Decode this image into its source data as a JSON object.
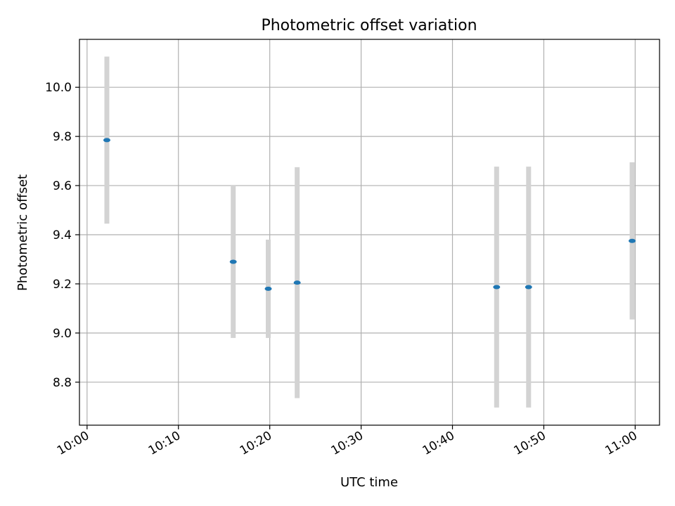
{
  "chart_data": {
    "type": "scatter",
    "title": "Photometric offset variation",
    "xlabel": "UTC time",
    "ylabel": "Photometric offset",
    "xlim": [
      "09:59:10",
      "11:02:40"
    ],
    "ylim": [
      8.625,
      10.195
    ],
    "x_ticks": [
      "10:00",
      "10:10",
      "10:20",
      "10:30",
      "10:40",
      "10:50",
      "11:00"
    ],
    "y_ticks": [
      "8.8",
      "9.0",
      "9.2",
      "9.4",
      "9.6",
      "9.8",
      "10.0"
    ],
    "grid": true,
    "colors": {
      "marker": "#1f77b4",
      "errorbar": "#d3d3d3",
      "grid": "#b0b0b0"
    },
    "points": [
      {
        "x": "10:02:10",
        "y": 9.785,
        "err": 0.34
      },
      {
        "x": "10:16:00",
        "y": 9.29,
        "err": 0.31
      },
      {
        "x": "10:19:50",
        "y": 9.18,
        "err": 0.2
      },
      {
        "x": "10:23:00",
        "y": 9.205,
        "err": 0.47
      },
      {
        "x": "10:44:50",
        "y": 9.187,
        "err": 0.49
      },
      {
        "x": "10:48:20",
        "y": 9.187,
        "err": 0.49
      },
      {
        "x": "10:59:40",
        "y": 9.375,
        "err": 0.32
      }
    ]
  }
}
